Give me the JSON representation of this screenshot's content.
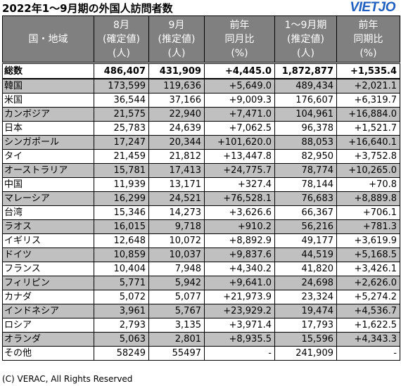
{
  "title": "2022年1～9月期の外国人訪問者数",
  "logo": "VIETJO",
  "headers": [
    [
      "国・地域"
    ],
    [
      "8月",
      "(確定値)",
      "(人)"
    ],
    [
      "9月",
      "(推定値)",
      "(人)"
    ],
    [
      "前年",
      "同月比",
      "(%)"
    ],
    [
      "1～9月期",
      "(推定値)",
      "(人)"
    ],
    [
      "前年",
      "同期比",
      "(%)"
    ]
  ],
  "total": {
    "label": "総数",
    "values": [
      "486,407",
      "431,909",
      "+4,445.0",
      "1,872,877",
      "+1,535.4"
    ]
  },
  "rows": [
    {
      "label": "韓国",
      "values": [
        "173,599",
        "119,636",
        "+5,649.0",
        "489,434",
        "+2,021.1"
      ]
    },
    {
      "label": "米国",
      "values": [
        "36,544",
        "37,166",
        "+9,009.3",
        "176,607",
        "+6,319.7"
      ]
    },
    {
      "label": "カンボジア",
      "values": [
        "21,575",
        "22,940",
        "+7,471.0",
        "104,961",
        "+16,884.0"
      ]
    },
    {
      "label": "日本",
      "values": [
        "25,783",
        "24,639",
        "+7,062.5",
        "96,378",
        "+1,521.7"
      ]
    },
    {
      "label": "シンガポール",
      "values": [
        "17,247",
        "20,344",
        "+101,620.0",
        "88,053",
        "+16,640.1"
      ]
    },
    {
      "label": "タイ",
      "values": [
        "21,459",
        "21,812",
        "+13,447.8",
        "82,950",
        "+3,752.8"
      ]
    },
    {
      "label": "オーストラリア",
      "values": [
        "15,781",
        "17,413",
        "+24,775.7",
        "78,774",
        "+10,265.0"
      ]
    },
    {
      "label": "中国",
      "values": [
        "11,939",
        "13,171",
        "+327.4",
        "78,144",
        "+70.8"
      ]
    },
    {
      "label": "マレーシア",
      "values": [
        "16,299",
        "24,521",
        "+76,528.1",
        "76,683",
        "+8,889.8"
      ]
    },
    {
      "label": "台湾",
      "values": [
        "15,346",
        "14,273",
        "+3,626.6",
        "66,367",
        "+706.1"
      ]
    },
    {
      "label": "ラオス",
      "values": [
        "16,015",
        "9,718",
        "+910.2",
        "56,216",
        "+781.3"
      ]
    },
    {
      "label": "イギリス",
      "values": [
        "12,648",
        "10,072",
        "+8,892.9",
        "49,177",
        "+3,619.9"
      ]
    },
    {
      "label": "ドイツ",
      "values": [
        "10,859",
        "10,037",
        "+9,837.6",
        "44,519",
        "+5,168.5"
      ]
    },
    {
      "label": "フランス",
      "values": [
        "10,404",
        "7,948",
        "+4,340.2",
        "41,820",
        "+3,426.1"
      ]
    },
    {
      "label": "フィリピン",
      "values": [
        "5,771",
        "5,942",
        "+9,641.0",
        "24,698",
        "+2,626.0"
      ]
    },
    {
      "label": "カナダ",
      "values": [
        "5,072",
        "5,077",
        "+21,973.9",
        "23,324",
        "+5,274.2"
      ]
    },
    {
      "label": "インドネシア",
      "values": [
        "3,961",
        "5,767",
        "+23,929.2",
        "19,474",
        "+4,536.7"
      ]
    },
    {
      "label": "ロシア",
      "values": [
        "2,793",
        "3,135",
        "+3,971.4",
        "17,793",
        "+1,622.5"
      ]
    },
    {
      "label": "オランダ",
      "values": [
        "5,063",
        "2,801",
        "+8,935.5",
        "15,596",
        "+4,343.3"
      ]
    },
    {
      "label": "その他",
      "values": [
        "58249",
        "55497",
        "-",
        "241,909",
        "-"
      ]
    }
  ],
  "footer": "(C) VERAC, All Rights Reserved",
  "colors": {
    "header_bg": "#808080",
    "shaded_row_bg": "#c0c0c0",
    "logo": "#1f5fbf"
  }
}
